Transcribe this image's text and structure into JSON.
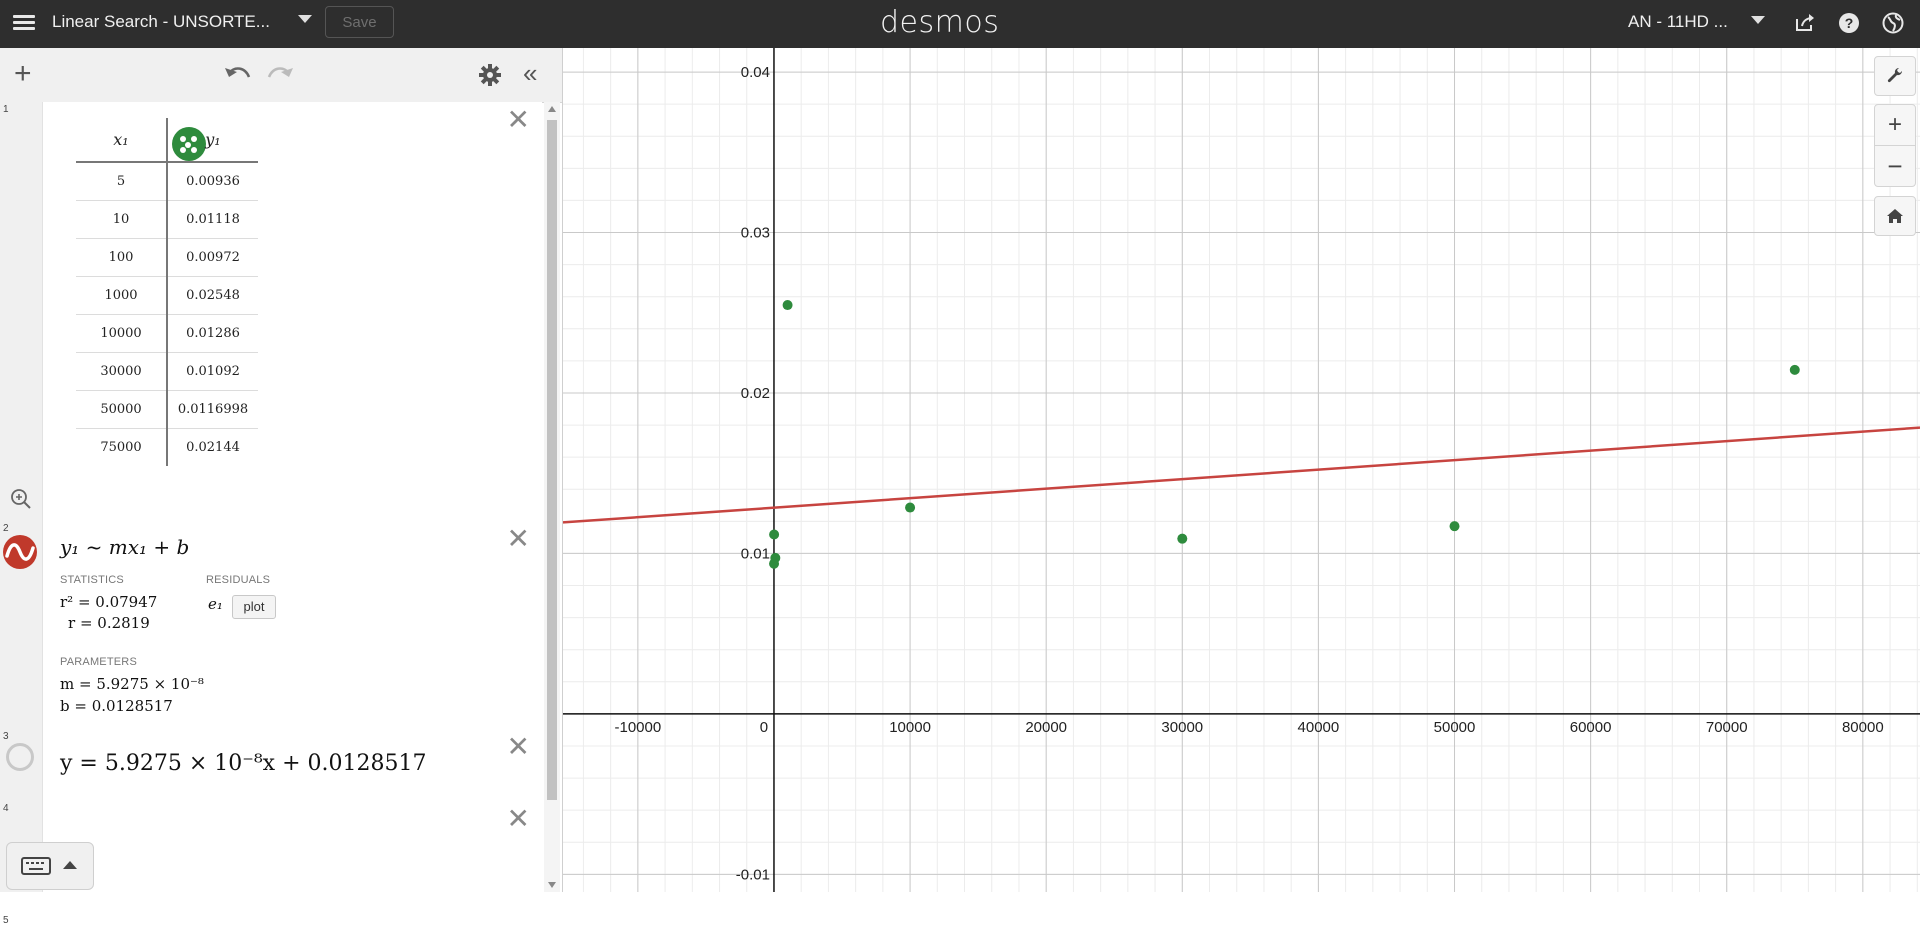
{
  "header": {
    "graph_title": "Linear Search - UNSORTE...",
    "save_label": "Save",
    "brand": "desmos",
    "user": "AN - 11HD ..."
  },
  "expressions": [
    {
      "index": "1",
      "type": "table",
      "columns": [
        "x₁",
        "y₁"
      ],
      "rows": [
        [
          "5",
          "0.00936"
        ],
        [
          "10",
          "0.01118"
        ],
        [
          "100",
          "0.00972"
        ],
        [
          "1000",
          "0.02548"
        ],
        [
          "10000",
          "0.01286"
        ],
        [
          "30000",
          "0.01092"
        ],
        [
          "50000",
          "0.0116998"
        ],
        [
          "75000",
          "0.02144"
        ]
      ],
      "color": "#2e8b3d"
    },
    {
      "index": "2",
      "type": "regression",
      "formula": "y₁ ~ mx₁ + b",
      "statistics_label": "STATISTICS",
      "residuals_label": "RESIDUALS",
      "r2": "r² = 0.07947",
      "r": "r = 0.2819",
      "residual_var": "e₁",
      "plot_label": "plot",
      "parameters_label": "PARAMETERS",
      "m": "m = 5.9275 × 10⁻⁸",
      "b": "b = 0.0128517",
      "color": "#c0392b"
    },
    {
      "index": "3",
      "type": "expression",
      "formula": "y = 5.9275 × 10⁻⁸x + 0.0128517"
    },
    {
      "index": "4",
      "type": "empty"
    },
    {
      "index": "5",
      "type": "empty"
    }
  ],
  "chart_data": {
    "type": "scatter",
    "x_ticks": [
      "-10000",
      "0",
      "10000",
      "20000",
      "30000",
      "40000",
      "50000",
      "60000",
      "70000",
      "80000"
    ],
    "y_ticks": [
      "0.04",
      "0.03",
      "0.02",
      "0.01",
      "-0.01"
    ],
    "xlim": [
      -15500,
      84200
    ],
    "ylim": [
      -0.0111,
      0.0415
    ],
    "grid": true,
    "series": [
      {
        "kind": "points",
        "color": "#2e8b3d",
        "x": [
          5,
          10,
          100,
          1000,
          10000,
          30000,
          50000,
          75000
        ],
        "y": [
          0.00936,
          0.01118,
          0.00972,
          0.02548,
          0.01286,
          0.01092,
          0.0116998,
          0.02144
        ]
      },
      {
        "kind": "line",
        "color": "#c74440",
        "slope": 5.9275e-08,
        "intercept": 0.0128517
      }
    ]
  }
}
